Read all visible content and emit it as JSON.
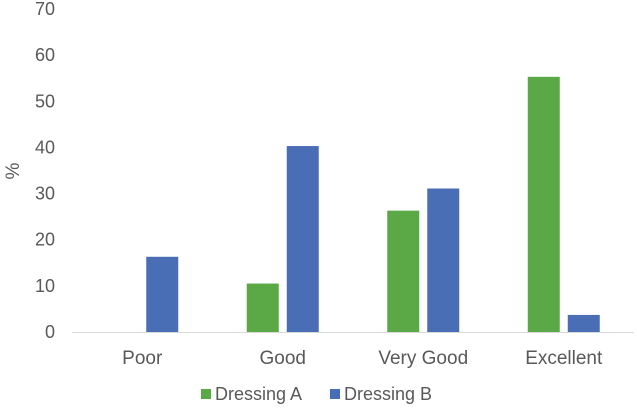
{
  "chart_data": {
    "type": "bar",
    "title": "",
    "xlabel": "",
    "ylabel": "%",
    "ylim": [
      0,
      70
    ],
    "yticks": [
      0,
      10,
      20,
      30,
      40,
      50,
      60,
      70
    ],
    "grid": false,
    "legend_position": "bottom",
    "categories": [
      "Poor",
      "Good",
      "Very Good",
      "Excellent"
    ],
    "series": [
      {
        "name": "Dressing A",
        "color": "#5aa946",
        "values": [
          0,
          10.5,
          26.3,
          55.3
        ]
      },
      {
        "name": "Dressing B",
        "color": "#4a6eb5",
        "values": [
          16.3,
          40.3,
          31.1,
          3.7
        ]
      }
    ]
  }
}
